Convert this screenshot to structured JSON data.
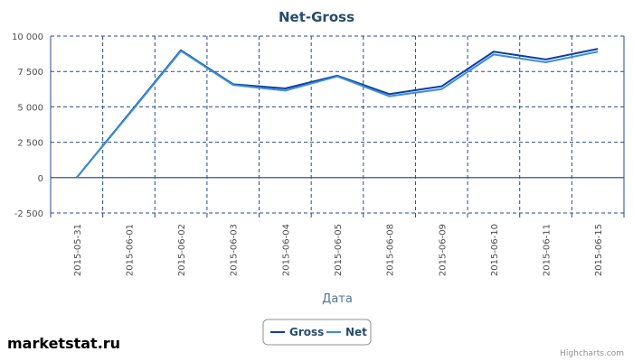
{
  "chart_data": {
    "type": "line",
    "title": "Net-Gross",
    "xlabel": "Дата",
    "ylabel": "",
    "categories": [
      "2015-05-31",
      "2015-06-01",
      "2015-06-02",
      "2015-06-03",
      "2015-06-04",
      "2015-06-05",
      "2015-06-08",
      "2015-06-09",
      "2015-06-10",
      "2015-06-11",
      "2015-06-15"
    ],
    "ylim": [
      -2500,
      10000
    ],
    "yticks": [
      -2500,
      0,
      2500,
      5000,
      7500,
      10000
    ],
    "ytick_labels": [
      "-2 500",
      "0",
      "2 500",
      "5 000",
      "7 500",
      "10 000"
    ],
    "grid": true,
    "legend_position": "bottom-center",
    "series": [
      {
        "name": "Gross",
        "color": "#0d3fa0",
        "values": [
          0,
          4500,
          9000,
          6600,
          6300,
          7200,
          5900,
          6450,
          8900,
          8350,
          9100
        ]
      },
      {
        "name": "Net",
        "color": "#3a8fd6",
        "values": [
          0,
          4450,
          8950,
          6550,
          6150,
          7150,
          5750,
          6250,
          8700,
          8150,
          8900
        ]
      }
    ]
  },
  "branding": "marketstat.ru",
  "credits": "Highcharts.com"
}
